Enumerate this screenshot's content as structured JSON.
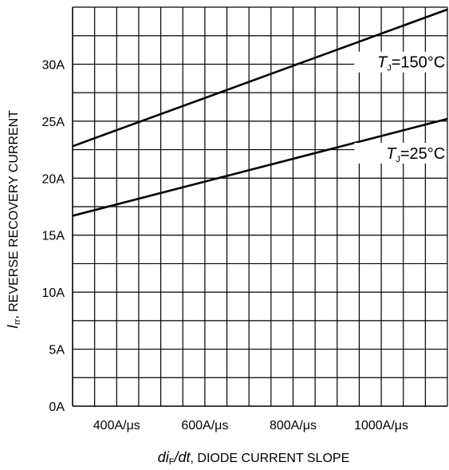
{
  "chart_data": {
    "type": "line",
    "x_tick_labels": [
      "400A/μs",
      "600A/μs",
      "800A/μs",
      "1000A/μs"
    ],
    "y_tick_labels": [
      "0A",
      "5A",
      "10A",
      "15A",
      "20A",
      "25A",
      "30A"
    ],
    "x_ticks": [
      400,
      600,
      800,
      1000
    ],
    "y_ticks": [
      0,
      5,
      10,
      15,
      20,
      25,
      30
    ],
    "xlim": [
      300,
      1150
    ],
    "ylim": [
      0,
      35
    ],
    "x_unit": "A/μs",
    "y_unit": "A",
    "grid": true,
    "xlabel": {
      "italic": "di",
      "sub": "F",
      "italic_tail": "/dt",
      "rest": ", DIODE CURRENT SLOPE"
    },
    "ylabel": {
      "italic": "I",
      "sub": "rr",
      "rest": ", REVERSE RECOVERY CURRENT"
    },
    "series": [
      {
        "label": {
          "main": "T",
          "sub": "J",
          "rest": "=150°C"
        },
        "x": [
          300,
          1150
        ],
        "y": [
          22.8,
          34.8
        ]
      },
      {
        "label": {
          "main": "T",
          "sub": "J",
          "rest": "=25°C"
        },
        "x": [
          300,
          1150
        ],
        "y": [
          16.7,
          25.2
        ]
      }
    ]
  }
}
